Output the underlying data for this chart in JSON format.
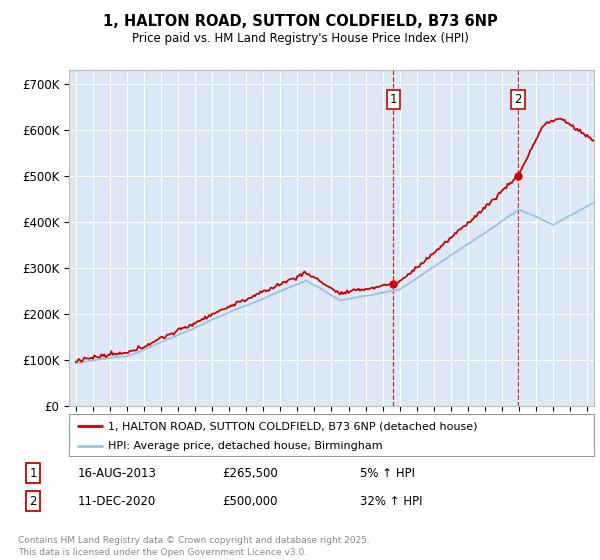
{
  "title": "1, HALTON ROAD, SUTTON COLDFIELD, B73 6NP",
  "subtitle": "Price paid vs. HM Land Registry's House Price Index (HPI)",
  "background_color": "#ffffff",
  "plot_bg_color": "#dce8f5",
  "grid_color": "#ffffff",
  "sale1_date_num": 2013.62,
  "sale1_price": 265500,
  "sale1_label": "1",
  "sale1_info": "16-AUG-2013",
  "sale1_price_str": "£265,500",
  "sale1_hpi": "5% ↑ HPI",
  "sale2_date_num": 2020.95,
  "sale2_price": 500000,
  "sale2_label": "2",
  "sale2_info": "11-DEC-2020",
  "sale2_price_str": "£500,000",
  "sale2_hpi": "32% ↑ HPI",
  "property_line_color": "#cc0000",
  "hpi_line_color": "#99c4e0",
  "legend1": "1, HALTON ROAD, SUTTON COLDFIELD, B73 6NP (detached house)",
  "legend2": "HPI: Average price, detached house, Birmingham",
  "footer1": "Contains HM Land Registry data © Crown copyright and database right 2025.",
  "footer2": "This data is licensed under the Open Government Licence v3.0.",
  "ylim_max": 730000,
  "yticks": [
    0,
    100000,
    200000,
    300000,
    400000,
    500000,
    600000,
    700000
  ],
  "ytick_labels": [
    "£0",
    "£100K",
    "£200K",
    "£300K",
    "£400K",
    "£500K",
    "£600K",
    "£700K"
  ],
  "xmin": 1994.6,
  "xmax": 2025.4
}
